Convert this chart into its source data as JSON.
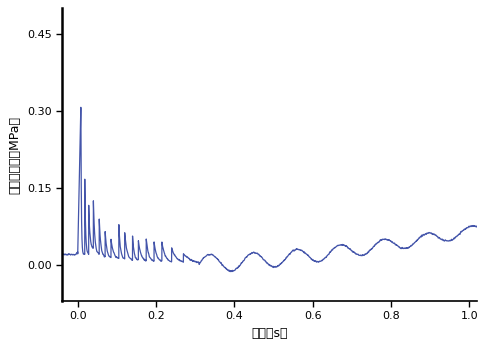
{
  "title": "",
  "xlabel": "时间（s）",
  "ylabel": "准静态压力（MPa）",
  "xlim": [
    -0.04,
    1.02
  ],
  "ylim": [
    -0.07,
    0.5
  ],
  "xticks": [
    0.0,
    0.2,
    0.4,
    0.6,
    0.8,
    1.0
  ],
  "yticks": [
    0.0,
    0.15,
    0.3,
    0.45
  ],
  "line_color": "#4455aa",
  "background_color": "#ffffff",
  "fig_background": "#ffffff"
}
